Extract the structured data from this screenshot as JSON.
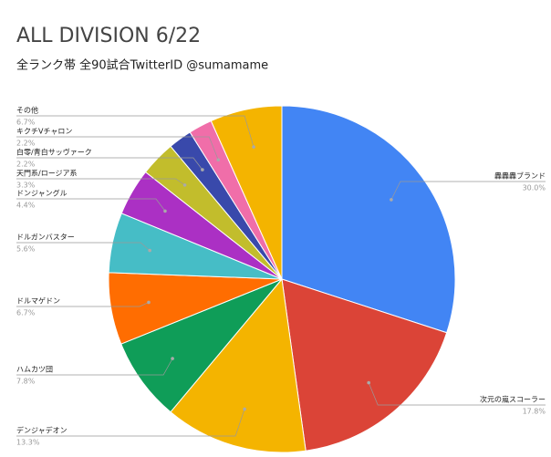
{
  "chart_data": {
    "type": "pie",
    "title": "ALL DIVISION 6/22",
    "subtitle": "全ランク帯 全90試合TwitterID @sumamame",
    "categories": [
      "轟轟轟ブランド",
      "次元の嵐スコーラー",
      "デンジャデオン",
      "ハムカツ団",
      "ドルマゲドン",
      "ドルガンバスター",
      "ドンジャングル",
      "天門系/ロージア系",
      "白零/青白サッヴァーク",
      "キクチVチャロン",
      "その他"
    ],
    "values": [
      30.0,
      17.8,
      13.3,
      7.8,
      6.7,
      5.6,
      4.4,
      3.3,
      2.2,
      2.2,
      6.7
    ],
    "value_labels": [
      "30.0%",
      "17.8%",
      "13.3%",
      "7.8%",
      "6.7%",
      "5.6%",
      "4.4%",
      "3.3%",
      "2.2%",
      "2.2%",
      "6.7%"
    ],
    "colors": [
      "#4285f4",
      "#db4437",
      "#f4b400",
      "#0f9d58",
      "#ff6d01",
      "#46bdc6",
      "#ab30c4",
      "#c2bd2c",
      "#3949ab",
      "#f06ea9",
      "#f4b400"
    ]
  }
}
